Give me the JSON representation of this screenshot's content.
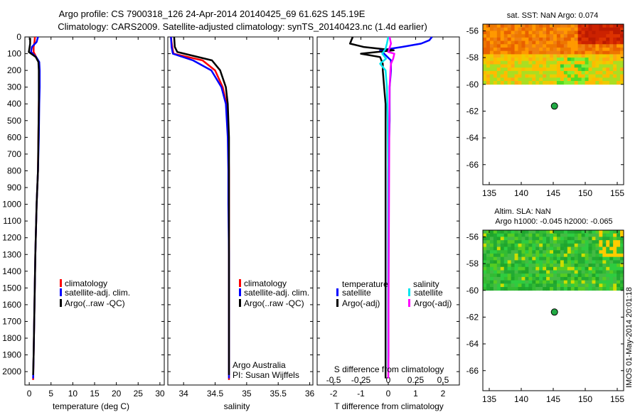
{
  "title": {
    "line1": "Argo profile: CS 7900318_126 24-Apr-2014 20140425_69 61.62S 145.19E",
    "line2": "Climatology: CARS2009. Satellite-adjusted climatology: synTS_20140423.nc (1.4d earlier)"
  },
  "colors": {
    "climatology": "#ff0000",
    "satellite": "#0000ff",
    "argo": "#000000",
    "sal_satellite": "#00e5ee",
    "sal_argo": "#ff00ff"
  },
  "depth_ticks": [
    "0",
    "100",
    "200",
    "300",
    "400",
    "500",
    "600",
    "700",
    "800",
    "900",
    "1000",
    "1100",
    "1200",
    "1300",
    "1400",
    "1500",
    "1600",
    "1700",
    "1800",
    "1900",
    "2000"
  ],
  "panels": {
    "temperature": {
      "xlabel": "temperature (deg C)",
      "xticks": [
        "0",
        "5",
        "10",
        "15",
        "20",
        "25",
        "30"
      ],
      "legend": [
        "climatology",
        "satellite-adj. clim.",
        "Argo(..raw -QC)"
      ]
    },
    "salinity": {
      "xlabel": "salinity",
      "xticks": [
        "34",
        "34.5",
        "35",
        "35.5",
        "36"
      ],
      "legend": [
        "climatology",
        "satellite-adj. clim.",
        "Argo(..raw -QC)"
      ],
      "credit1": "Argo Australia",
      "credit2": "PI: Susan Wijffels"
    },
    "difference": {
      "xlabel": "T difference from climatology",
      "toplabel": "S difference from climatology",
      "xticks": [
        "-2",
        "-1",
        "0",
        "1",
        "2"
      ],
      "sticks": [
        "-0.5",
        "-0.25",
        "0",
        "0.25",
        "0.5"
      ],
      "legend_head_t": "temperature",
      "legend_head_s": "salinity",
      "legend_t": [
        "satellite",
        "Argo(-adj)"
      ],
      "legend_s": [
        "satellite",
        "Argo(-adj)"
      ]
    }
  },
  "maps": {
    "sst": {
      "title": "sat. SST: NaN Argo: 0.074",
      "lat_ticks": [
        "-56",
        "-58",
        "-60",
        "-62",
        "-64",
        "-66"
      ],
      "lon_ticks": [
        "135",
        "140",
        "145",
        "150",
        "155"
      ]
    },
    "sla": {
      "title1": "Altim. SLA: NaN",
      "title2": "Argo h1000: -0.045 h2000: -0.065",
      "lat_ticks": [
        "-56",
        "-58",
        "-60",
        "-62",
        "-64",
        "-66"
      ],
      "lon_ticks": [
        "135",
        "140",
        "145",
        "150",
        "155"
      ]
    },
    "argo_position": {
      "lon": 145.19,
      "lat": -61.62
    }
  },
  "footer": "IMOS 01-May-2014 20:01:18",
  "chart_data": [
    {
      "type": "line",
      "name": "temperature",
      "xlabel": "temperature (deg C)",
      "ylabel": "",
      "xlim": [
        -1,
        31
      ],
      "ylim": [
        2080,
        0
      ],
      "series": [
        {
          "name": "climatology",
          "x": [
            1.3,
            1.2,
            1.0,
            1.0,
            1.6,
            2.2,
            2.3,
            2.3,
            2.2,
            2.1,
            2.0,
            1.7,
            1.4,
            1.2,
            1.0,
            0.9
          ],
          "y": [
            0,
            30,
            60,
            90,
            120,
            150,
            200,
            300,
            400,
            600,
            800,
            1000,
            1300,
            1600,
            1900,
            2050
          ]
        },
        {
          "name": "satellite-adj. clim.",
          "x": [
            2.0,
            1.7,
            0.6,
            0.4,
            1.6,
            2.3,
            2.4,
            2.4,
            2.3,
            2.2,
            2.0,
            1.7,
            1.4,
            1.2,
            1.0,
            0.9
          ],
          "y": [
            0,
            30,
            60,
            90,
            120,
            150,
            200,
            300,
            400,
            600,
            800,
            1000,
            1300,
            1600,
            1900,
            2040
          ]
        },
        {
          "name": "Argo(..raw -QC)",
          "x": [
            0.2,
            0.2,
            0.1,
            -0.1,
            1.5,
            2.1,
            2.2,
            2.2,
            2.2,
            2.1,
            2.0,
            1.7,
            1.4,
            1.2,
            1.0,
            0.9
          ],
          "y": [
            5,
            40,
            60,
            90,
            120,
            150,
            200,
            300,
            400,
            600,
            800,
            1000,
            1300,
            1600,
            1900,
            2020
          ]
        }
      ]
    },
    {
      "type": "line",
      "name": "salinity",
      "xlabel": "salinity",
      "ylabel": "",
      "xlim": [
        33.75,
        36.05
      ],
      "ylim": [
        2080,
        0
      ],
      "series": [
        {
          "name": "climatology",
          "x": [
            33.8,
            33.82,
            33.84,
            34.3,
            34.5,
            34.62,
            34.68,
            34.71,
            34.72,
            34.72,
            34.72,
            34.72,
            34.72,
            34.72
          ],
          "y": [
            0,
            60,
            100,
            140,
            200,
            300,
            400,
            600,
            800,
            1000,
            1300,
            1600,
            1900,
            2050
          ]
        },
        {
          "name": "satellite-adj. clim.",
          "x": [
            33.8,
            33.81,
            33.83,
            34.15,
            34.44,
            34.6,
            34.67,
            34.7,
            34.71,
            34.71,
            34.72,
            34.72,
            34.72,
            34.72
          ],
          "y": [
            0,
            60,
            100,
            140,
            200,
            300,
            400,
            600,
            800,
            1000,
            1300,
            1600,
            1900,
            2040
          ]
        },
        {
          "name": "Argo(..raw -QC)",
          "x": [
            33.85,
            33.86,
            33.9,
            34.45,
            34.58,
            34.67,
            34.7,
            34.72,
            34.72,
            34.72,
            34.72,
            34.72,
            34.72,
            34.72
          ],
          "y": [
            0,
            60,
            90,
            140,
            200,
            300,
            400,
            600,
            800,
            1000,
            1300,
            1600,
            1900,
            2020
          ]
        }
      ]
    },
    {
      "type": "line",
      "name": "difference",
      "xlabel": "T difference from climatology",
      "ylabel": "",
      "xlim": [
        -2.6,
        2.6
      ],
      "ylim": [
        2080,
        0
      ],
      "series": [
        {
          "name": "temperature satellite",
          "x": [
            1.6,
            1.5,
            1.2,
            0.5,
            -0.3,
            -0.15,
            0.1,
            0.1,
            0.05,
            0.05,
            0.0,
            0.0,
            0.0,
            0.0
          ],
          "y": [
            0,
            20,
            40,
            60,
            80,
            100,
            140,
            200,
            300,
            500,
            800,
            1200,
            1600,
            2000
          ]
        },
        {
          "name": "temperature Argo(-adj)",
          "x": [
            -1.3,
            -1.4,
            -0.9,
            0.2,
            -1.0,
            -0.3,
            -0.2,
            -0.2,
            -0.15,
            -0.1,
            -0.1,
            -0.1,
            -0.1,
            -0.1,
            -0.1,
            -0.1
          ],
          "y": [
            0,
            40,
            60,
            80,
            100,
            120,
            160,
            200,
            300,
            400,
            600,
            800,
            1200,
            1600,
            1900,
            2040
          ]
        },
        {
          "name": "salinity satellite",
          "x": [
            0.0,
            -0.05,
            -0.1,
            -0.22,
            -0.08,
            -0.3,
            -0.1,
            -0.05,
            -0.02,
            0.0,
            0.0,
            0.0,
            0.0
          ],
          "y": [
            0,
            40,
            70,
            100,
            130,
            160,
            200,
            300,
            500,
            800,
            1200,
            1600,
            2000
          ]
        },
        {
          "name": "salinity Argo(-adj)",
          "x": [
            0.05,
            0.1,
            0.0,
            0.22,
            0.18,
            0.1,
            0.08,
            0.05,
            0.04,
            0.03,
            0.02,
            0.01,
            0.01,
            0.0
          ],
          "y": [
            0,
            40,
            90,
            100,
            130,
            160,
            200,
            300,
            500,
            800,
            1200,
            1600,
            1900,
            2040
          ]
        }
      ]
    },
    {
      "type": "heatmap",
      "name": "sat. SST map",
      "xlim": [
        134,
        156
      ],
      "ylim": [
        -67.5,
        -55.5
      ],
      "data_extent_lat": [
        -60,
        -55.5
      ],
      "points": [
        {
          "name": "Argo float",
          "lon": 145.19,
          "lat": -61.62
        }
      ]
    },
    {
      "type": "heatmap",
      "name": "Altim. SLA map",
      "xlim": [
        134,
        156
      ],
      "ylim": [
        -67.5,
        -55.5
      ],
      "data_extent_lat": [
        -60,
        -55.5
      ],
      "points": [
        {
          "name": "Argo float",
          "lon": 145.19,
          "lat": -61.62
        }
      ]
    }
  ]
}
